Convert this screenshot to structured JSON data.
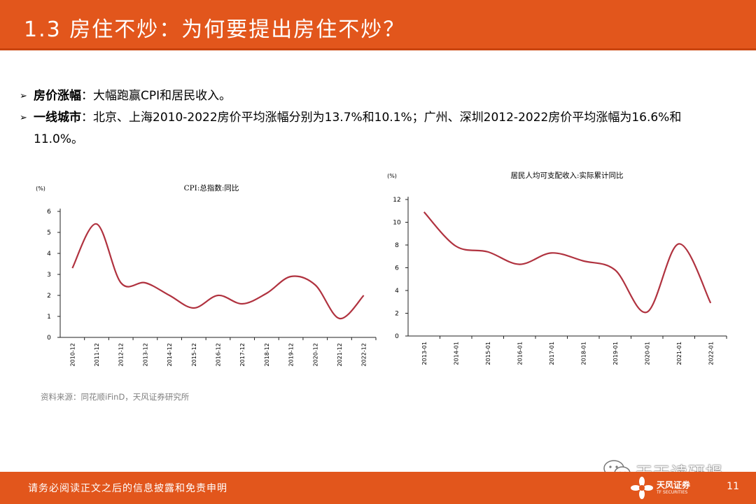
{
  "header": {
    "title": "1.3 房住不炒：为何要提出房住不炒？"
  },
  "bullets": [
    {
      "label": "房价涨幅",
      "text": "：大幅跑赢CPI和居民收入。"
    },
    {
      "label": "一线城市",
      "text": "：北京、上海2010-2022房价平均涨幅分别为13.7%和10.1%；广州、深圳2012-2022房价平均涨幅为16.6%和",
      "text2": "11.0%。"
    }
  ],
  "source": "资料来源：同花顺iFinD，天风证券研究所",
  "footer": {
    "disclaimer": "请务必阅读正文之后的信息披露和免责申明",
    "page": "11",
    "logo": "天风证券",
    "logo_sub": "TF SECURITIES"
  },
  "watermark": {
    "text": "天天读研报"
  },
  "colors": {
    "accent": "#e2561c",
    "line": "#b0323f"
  },
  "chart_data": [
    {
      "type": "line",
      "title": "CPI:总指数:同比",
      "unit": "(%)",
      "categories": [
        "2010-12",
        "2011-12",
        "2012-12",
        "2013-12",
        "2014-12",
        "2015-12",
        "2016-12",
        "2017-12",
        "2018-12",
        "2019-12",
        "2020-12",
        "2021-12",
        "2022-12"
      ],
      "x": [
        0,
        1,
        2,
        3,
        4,
        5,
        6,
        7,
        8,
        9,
        10,
        11,
        12
      ],
      "values": [
        3.3,
        5.4,
        2.6,
        2.6,
        2.0,
        1.4,
        2.0,
        1.6,
        2.1,
        2.9,
        2.5,
        0.9,
        2.0
      ],
      "ylim": [
        0,
        6
      ],
      "yticks": [
        0,
        1,
        2,
        3,
        4,
        5,
        6
      ]
    },
    {
      "type": "line",
      "title": "居民人均可支配收入:实际累计同比",
      "unit": "(%)",
      "categories": [
        "2013-01",
        "2014-01",
        "2015-01",
        "2016-01",
        "2017-01",
        "2018-01",
        "2019-01",
        "2020-01",
        "2021-01",
        "2022-01"
      ],
      "x": [
        0,
        1,
        2,
        3,
        4,
        5,
        6,
        7,
        8,
        9
      ],
      "values": [
        10.9,
        7.9,
        7.4,
        6.3,
        7.3,
        6.6,
        5.8,
        2.1,
        8.1,
        2.9
      ],
      "ylim": [
        0,
        12
      ],
      "yticks": [
        0,
        2,
        4,
        6,
        8,
        10,
        12
      ]
    }
  ]
}
